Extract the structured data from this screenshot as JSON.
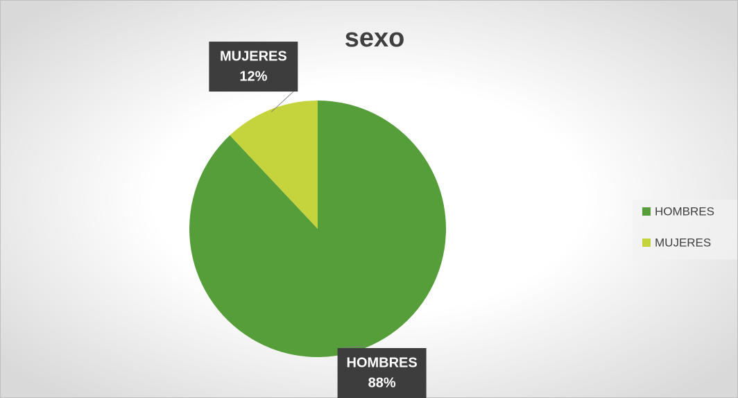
{
  "chart_data": {
    "type": "pie",
    "title": "sexo",
    "categories": [
      "HOMBRES",
      "MUJERES"
    ],
    "values": [
      88,
      12
    ],
    "value_labels": [
      "88%",
      "12%"
    ],
    "colors": [
      "#559e3a",
      "#c5d33c"
    ],
    "legend": "right"
  }
}
